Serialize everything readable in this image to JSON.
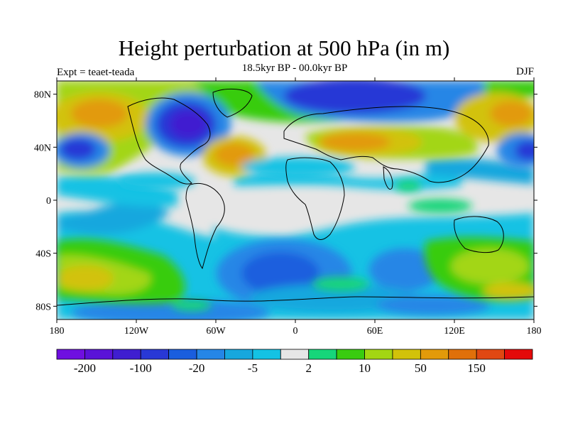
{
  "title": "Height perturbation at 500 hPa (in m)",
  "subtitle": "18.5kyr BP - 00.0kyr BP",
  "left_label": "Expt = teaet-teada",
  "right_label": "DJF",
  "map": {
    "projection": "cylindrical-equidistant",
    "lon_range": [
      -180,
      180
    ],
    "lat_range": [
      -90,
      90
    ],
    "lat_ticks": [
      {
        "lat": 80,
        "label": "80N"
      },
      {
        "lat": 40,
        "label": "40N"
      },
      {
        "lat": 0,
        "label": "0"
      },
      {
        "lat": -40,
        "label": "40S"
      },
      {
        "lat": -80,
        "label": "80S"
      }
    ],
    "lon_ticks": [
      {
        "lon": -180,
        "label": "180"
      },
      {
        "lon": -120,
        "label": "120W"
      },
      {
        "lon": -60,
        "label": "60W"
      },
      {
        "lon": 0,
        "label": "0"
      },
      {
        "lon": 60,
        "label": "60E"
      },
      {
        "lon": 120,
        "label": "120E"
      },
      {
        "lon": 180,
        "label": "180"
      }
    ]
  },
  "colorbar": {
    "colors": [
      "#6f0fe0",
      "#5a12d8",
      "#3f1ed0",
      "#2838d6",
      "#1a5ede",
      "#2586e6",
      "#17a7de",
      "#14c2e4",
      "#e6e6e6",
      "#16d67a",
      "#39cc10",
      "#a3d612",
      "#d2c20a",
      "#e29a0a",
      "#e0700a",
      "#e04812",
      "#e40a0a"
    ],
    "labels": [
      {
        "boundary": 1,
        "text": "-200"
      },
      {
        "boundary": 3,
        "text": "-100"
      },
      {
        "boundary": 5,
        "text": "-20"
      },
      {
        "boundary": 7,
        "text": "-5"
      },
      {
        "boundary": 9,
        "text": "2"
      },
      {
        "boundary": 11,
        "text": "10"
      },
      {
        "boundary": 13,
        "text": "50"
      },
      {
        "boundary": 15,
        "text": "150"
      }
    ]
  }
}
